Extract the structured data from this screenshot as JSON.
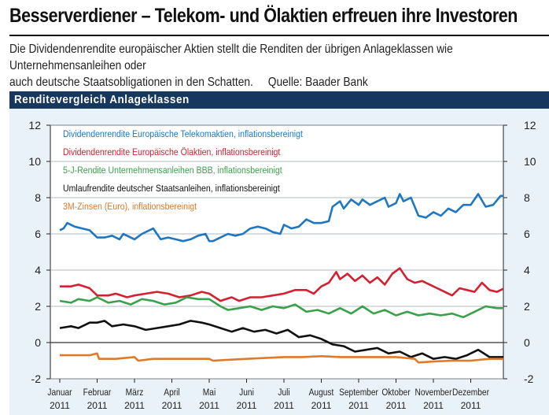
{
  "header": {
    "title": "Besserverdiener – Telekom- und Ölaktien erfreuen ihre Investoren",
    "subtitle_line1": "Die Dividendenrendite europäischer Aktien stellt die Renditen der übrigen Anlageklassen wie Unternehmensanleihen oder",
    "subtitle_line2": "auch deutsche Staatsobligationen in den Schatten.",
    "source": "Quelle: Baader Bank"
  },
  "band": {
    "title": "Renditevergleich Anlageklassen"
  },
  "chart_data": {
    "type": "line",
    "title": "Renditevergleich Anlageklassen",
    "xlabel": "",
    "ylabel": "",
    "ylim": [
      -2,
      12
    ],
    "yticks": [
      "-2",
      "0",
      "2",
      "4",
      "6",
      "8",
      "10",
      "12"
    ],
    "xticks": [
      {
        "month": "Januar",
        "year": "2011"
      },
      {
        "month": "Februar",
        "year": "2011"
      },
      {
        "month": "März",
        "year": "2011"
      },
      {
        "month": "April",
        "year": "2011"
      },
      {
        "month": "Mai",
        "year": "2011"
      },
      {
        "month": "Juni",
        "year": "2011"
      },
      {
        "month": "Juli",
        "year": "2011"
      },
      {
        "month": "August",
        "year": "2011"
      },
      {
        "month": "September",
        "year": "2011"
      },
      {
        "month": "Oktober",
        "year": "2011"
      },
      {
        "month": "November",
        "year": "2011"
      },
      {
        "month": "Dezember",
        "year": "2011"
      }
    ],
    "grid": "horizontal",
    "legend_placement": "top-left",
    "series": [
      {
        "name": "Dividendenrendite Europäische Telekomaktien, inflationsbereinigt",
        "color": "#1f77c0",
        "points": [
          [
            0,
            6.2
          ],
          [
            0.1,
            6.3
          ],
          [
            0.2,
            6.6
          ],
          [
            0.4,
            6.4
          ],
          [
            0.6,
            6.3
          ],
          [
            0.8,
            6.2
          ],
          [
            1.0,
            5.8
          ],
          [
            1.2,
            5.8
          ],
          [
            1.4,
            5.9
          ],
          [
            1.6,
            5.7
          ],
          [
            1.7,
            6.0
          ],
          [
            1.8,
            5.9
          ],
          [
            2.0,
            5.7
          ],
          [
            2.2,
            6.0
          ],
          [
            2.5,
            6.3
          ],
          [
            2.7,
            5.7
          ],
          [
            2.9,
            5.8
          ],
          [
            3.1,
            5.7
          ],
          [
            3.3,
            5.6
          ],
          [
            3.5,
            5.7
          ],
          [
            3.7,
            5.9
          ],
          [
            3.9,
            6.0
          ],
          [
            4.0,
            5.6
          ],
          [
            4.1,
            5.6
          ],
          [
            4.3,
            5.8
          ],
          [
            4.5,
            6.0
          ],
          [
            4.7,
            5.9
          ],
          [
            4.9,
            6.0
          ],
          [
            5.1,
            6.3
          ],
          [
            5.3,
            6.4
          ],
          [
            5.5,
            6.3
          ],
          [
            5.7,
            6.1
          ],
          [
            5.9,
            6.0
          ],
          [
            6.0,
            6.5
          ],
          [
            6.2,
            6.3
          ],
          [
            6.4,
            6.4
          ],
          [
            6.6,
            6.8
          ],
          [
            6.8,
            6.6
          ],
          [
            7.0,
            6.6
          ],
          [
            7.2,
            6.7
          ],
          [
            7.3,
            7.5
          ],
          [
            7.5,
            7.8
          ],
          [
            7.6,
            7.4
          ],
          [
            7.8,
            7.9
          ],
          [
            8.0,
            7.6
          ],
          [
            8.1,
            7.9
          ],
          [
            8.3,
            7.6
          ],
          [
            8.5,
            7.8
          ],
          [
            8.7,
            8.0
          ],
          [
            8.8,
            7.5
          ],
          [
            9.0,
            7.7
          ],
          [
            9.1,
            8.2
          ],
          [
            9.2,
            7.8
          ],
          [
            9.4,
            8.0
          ],
          [
            9.6,
            7.0
          ],
          [
            9.8,
            6.9
          ],
          [
            10.0,
            7.2
          ],
          [
            10.2,
            7.0
          ],
          [
            10.4,
            7.4
          ],
          [
            10.6,
            7.2
          ],
          [
            10.8,
            7.6
          ],
          [
            11.0,
            7.6
          ],
          [
            11.2,
            8.2
          ],
          [
            11.4,
            7.5
          ],
          [
            11.6,
            7.6
          ],
          [
            11.8,
            8.1
          ],
          [
            12.0,
            8.1
          ],
          [
            12.1,
            7.9
          ]
        ]
      },
      {
        "name": "Dividendenrendite Europäische Ölaktien, inflationsbereinigt",
        "color": "#d42030",
        "points": [
          [
            0,
            3.1
          ],
          [
            0.3,
            3.1
          ],
          [
            0.5,
            3.2
          ],
          [
            0.8,
            3.0
          ],
          [
            1.0,
            2.6
          ],
          [
            1.3,
            2.6
          ],
          [
            1.5,
            2.7
          ],
          [
            1.8,
            2.5
          ],
          [
            2.0,
            2.6
          ],
          [
            2.3,
            2.7
          ],
          [
            2.6,
            2.8
          ],
          [
            2.9,
            2.7
          ],
          [
            3.2,
            2.5
          ],
          [
            3.5,
            2.6
          ],
          [
            3.8,
            2.8
          ],
          [
            4.0,
            2.7
          ],
          [
            4.3,
            2.3
          ],
          [
            4.6,
            2.5
          ],
          [
            4.8,
            2.3
          ],
          [
            5.1,
            2.5
          ],
          [
            5.4,
            2.5
          ],
          [
            5.7,
            2.6
          ],
          [
            6.0,
            2.7
          ],
          [
            6.3,
            2.9
          ],
          [
            6.6,
            2.9
          ],
          [
            6.8,
            2.7
          ],
          [
            7.0,
            3.1
          ],
          [
            7.2,
            3.3
          ],
          [
            7.4,
            3.9
          ],
          [
            7.5,
            3.5
          ],
          [
            7.7,
            3.8
          ],
          [
            7.9,
            3.4
          ],
          [
            8.1,
            3.7
          ],
          [
            8.3,
            3.3
          ],
          [
            8.5,
            3.6
          ],
          [
            8.7,
            3.2
          ],
          [
            8.9,
            3.8
          ],
          [
            9.1,
            4.1
          ],
          [
            9.3,
            3.5
          ],
          [
            9.5,
            3.3
          ],
          [
            9.7,
            3.4
          ],
          [
            9.9,
            3.2
          ],
          [
            10.1,
            3.0
          ],
          [
            10.3,
            2.8
          ],
          [
            10.5,
            2.6
          ],
          [
            10.7,
            3.0
          ],
          [
            10.9,
            2.9
          ],
          [
            11.1,
            2.8
          ],
          [
            11.3,
            3.3
          ],
          [
            11.5,
            2.9
          ],
          [
            11.7,
            2.8
          ],
          [
            11.9,
            3.0
          ],
          [
            12.1,
            2.9
          ]
        ]
      },
      {
        "name": "5-J-Rendite Unternehmensanleihen BBB, inflationsbereinigt",
        "color": "#3aa14b",
        "points": [
          [
            0,
            2.3
          ],
          [
            0.3,
            2.2
          ],
          [
            0.5,
            2.4
          ],
          [
            0.8,
            2.3
          ],
          [
            1.0,
            2.5
          ],
          [
            1.3,
            2.2
          ],
          [
            1.6,
            2.3
          ],
          [
            1.9,
            2.1
          ],
          [
            2.2,
            2.4
          ],
          [
            2.5,
            2.3
          ],
          [
            2.8,
            2.1
          ],
          [
            3.1,
            2.2
          ],
          [
            3.4,
            2.5
          ],
          [
            3.7,
            2.4
          ],
          [
            4.0,
            2.4
          ],
          [
            4.3,
            2.0
          ],
          [
            4.5,
            1.8
          ],
          [
            4.8,
            1.9
          ],
          [
            5.1,
            2.0
          ],
          [
            5.4,
            1.8
          ],
          [
            5.7,
            2.0
          ],
          [
            6.0,
            1.9
          ],
          [
            6.3,
            2.1
          ],
          [
            6.6,
            1.7
          ],
          [
            6.9,
            1.8
          ],
          [
            7.2,
            1.6
          ],
          [
            7.5,
            1.9
          ],
          [
            7.8,
            1.6
          ],
          [
            8.1,
            2.0
          ],
          [
            8.4,
            1.6
          ],
          [
            8.7,
            1.8
          ],
          [
            9.0,
            1.5
          ],
          [
            9.3,
            1.7
          ],
          [
            9.6,
            1.5
          ],
          [
            9.9,
            1.6
          ],
          [
            10.2,
            1.5
          ],
          [
            10.5,
            1.6
          ],
          [
            10.8,
            1.4
          ],
          [
            11.1,
            1.7
          ],
          [
            11.4,
            2.0
          ],
          [
            11.7,
            1.9
          ],
          [
            12.1,
            1.9
          ]
        ]
      },
      {
        "name": "Umlaufrendite deutscher Staatsanleihen, inflationsbereinigt",
        "color": "#111111",
        "points": [
          [
            0,
            0.8
          ],
          [
            0.3,
            0.9
          ],
          [
            0.5,
            0.8
          ],
          [
            0.8,
            1.1
          ],
          [
            1.0,
            1.1
          ],
          [
            1.2,
            1.2
          ],
          [
            1.4,
            0.9
          ],
          [
            1.7,
            1.0
          ],
          [
            2.0,
            0.9
          ],
          [
            2.3,
            0.7
          ],
          [
            2.6,
            0.8
          ],
          [
            2.9,
            0.9
          ],
          [
            3.2,
            1.0
          ],
          [
            3.5,
            1.2
          ],
          [
            3.8,
            1.1
          ],
          [
            4.0,
            1.0
          ],
          [
            4.3,
            0.8
          ],
          [
            4.6,
            0.6
          ],
          [
            4.9,
            0.8
          ],
          [
            5.2,
            0.6
          ],
          [
            5.5,
            0.7
          ],
          [
            5.8,
            0.5
          ],
          [
            6.1,
            0.7
          ],
          [
            6.4,
            0.3
          ],
          [
            6.7,
            0.4
          ],
          [
            7.0,
            0.2
          ],
          [
            7.3,
            -0.1
          ],
          [
            7.6,
            -0.2
          ],
          [
            7.9,
            -0.5
          ],
          [
            8.2,
            -0.4
          ],
          [
            8.5,
            -0.3
          ],
          [
            8.8,
            -0.6
          ],
          [
            9.1,
            -0.5
          ],
          [
            9.4,
            -0.8
          ],
          [
            9.7,
            -0.6
          ],
          [
            10.0,
            -0.9
          ],
          [
            10.3,
            -0.8
          ],
          [
            10.6,
            -0.9
          ],
          [
            10.9,
            -0.7
          ],
          [
            11.2,
            -0.4
          ],
          [
            11.5,
            -0.8
          ],
          [
            11.8,
            -0.8
          ],
          [
            12.1,
            -0.8
          ]
        ]
      },
      {
        "name": "3M-Zinsen (Euro), inflationsbereinigt",
        "color": "#e07a2b",
        "points": [
          [
            0,
            -0.7
          ],
          [
            0.5,
            -0.7
          ],
          [
            0.8,
            -0.7
          ],
          [
            1.0,
            -0.6
          ],
          [
            1.05,
            -0.9
          ],
          [
            1.5,
            -0.9
          ],
          [
            2.0,
            -0.8
          ],
          [
            2.1,
            -1.0
          ],
          [
            2.5,
            -0.9
          ],
          [
            3.0,
            -0.9
          ],
          [
            3.5,
            -0.9
          ],
          [
            4.0,
            -0.9
          ],
          [
            4.1,
            -1.0
          ],
          [
            4.5,
            -0.95
          ],
          [
            5.0,
            -0.9
          ],
          [
            5.5,
            -0.85
          ],
          [
            6.0,
            -0.8
          ],
          [
            6.5,
            -0.8
          ],
          [
            7.0,
            -0.75
          ],
          [
            7.5,
            -0.8
          ],
          [
            8.0,
            -0.8
          ],
          [
            8.5,
            -0.8
          ],
          [
            9.0,
            -0.8
          ],
          [
            9.5,
            -0.9
          ],
          [
            9.6,
            -1.1
          ],
          [
            10.0,
            -1.05
          ],
          [
            10.5,
            -1.0
          ],
          [
            11.0,
            -1.0
          ],
          [
            11.5,
            -0.9
          ],
          [
            12.1,
            -0.9
          ]
        ]
      }
    ]
  }
}
